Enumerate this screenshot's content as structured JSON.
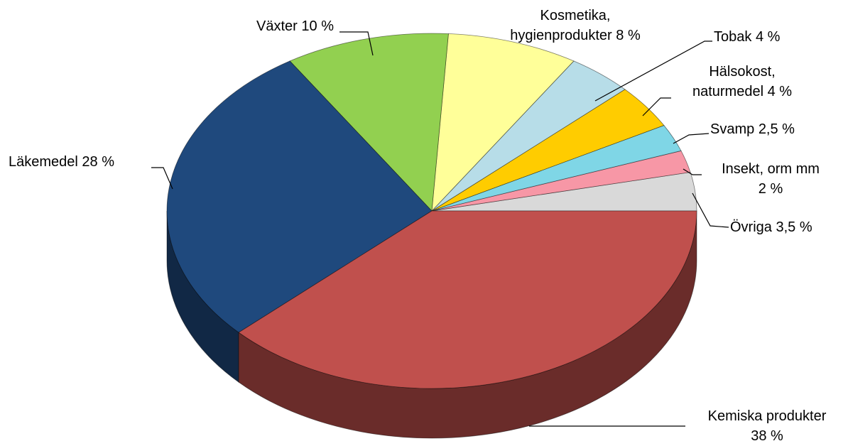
{
  "chart_data": {
    "type": "pie",
    "categories": [
      "Övriga",
      "Insekt, orm mm",
      "Svamp",
      "Hälsokost, naturmedel",
      "Tobak",
      "Kosmetika, hygienprodukter",
      "Växter",
      "Läkemedel",
      "Kemiska produkter"
    ],
    "values": [
      3.5,
      2,
      2.5,
      4,
      4,
      8,
      10,
      28,
      38
    ],
    "value_labels": [
      "3,5 %",
      "2 %",
      "2,5 %",
      "4 %",
      "4 %",
      "8 %",
      "10 %",
      "28 %",
      "38 %"
    ],
    "colors": [
      "#d9d9d9",
      "#f797a6",
      "#7fd6e6",
      "#ffcc00",
      "#b7dde8",
      "#ffff99",
      "#92d050",
      "#1f497d",
      "#c0504d"
    ]
  }
}
